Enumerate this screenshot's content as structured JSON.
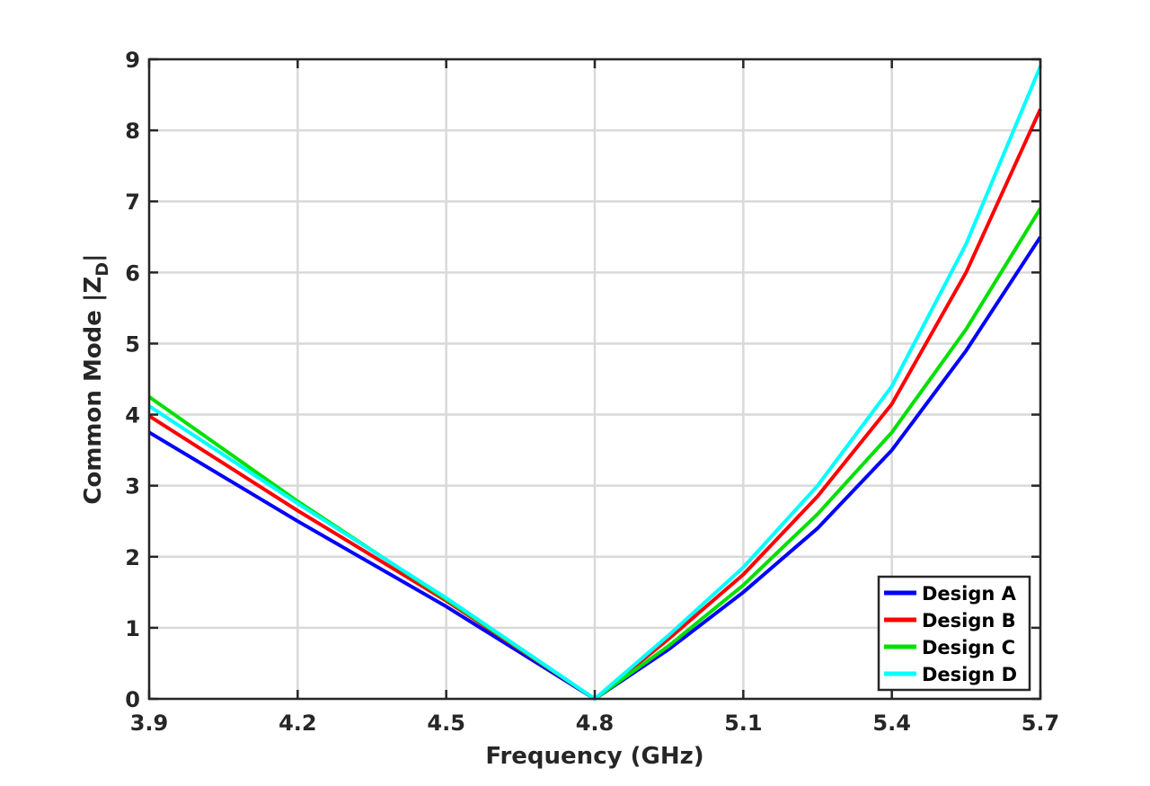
{
  "chart_data": {
    "type": "line",
    "xlabel": "Frequency (GHz)",
    "ylabel": "Common Mode |Z",
    "ylabel_subscript": "D",
    "ylabel_suffix": "|",
    "xlim": [
      3.9,
      5.7
    ],
    "ylim": [
      0,
      9
    ],
    "xticks": [
      "3.9",
      "4.2",
      "4.5",
      "4.8",
      "5.1",
      "5.4",
      "5.7"
    ],
    "yticks": [
      "0",
      "1",
      "2",
      "3",
      "4",
      "5",
      "6",
      "7",
      "8",
      "9"
    ],
    "grid": true,
    "legend_position": "bottom-right",
    "series": [
      {
        "name": "Design A",
        "color": "#0000ff",
        "x": [
          3.9,
          4.2,
          4.5,
          4.8,
          4.95,
          5.1,
          5.25,
          5.4,
          5.55,
          5.7
        ],
        "y": [
          3.75,
          2.5,
          1.3,
          0.0,
          0.7,
          1.5,
          2.4,
          3.5,
          4.9,
          6.5
        ]
      },
      {
        "name": "Design B",
        "color": "#ff0000",
        "x": [
          3.9,
          4.2,
          4.5,
          4.8,
          4.95,
          5.1,
          5.25,
          5.4,
          5.55,
          5.7
        ],
        "y": [
          3.98,
          2.65,
          1.38,
          0.0,
          0.85,
          1.75,
          2.85,
          4.15,
          6.0,
          8.3
        ]
      },
      {
        "name": "Design C",
        "color": "#00e000",
        "x": [
          3.9,
          4.2,
          4.5,
          4.8,
          4.95,
          5.1,
          5.25,
          5.4,
          5.55,
          5.7
        ],
        "y": [
          4.25,
          2.78,
          1.4,
          0.0,
          0.75,
          1.6,
          2.6,
          3.75,
          5.2,
          6.9
        ]
      },
      {
        "name": "Design D",
        "color": "#00ffff",
        "x": [
          3.9,
          4.2,
          4.5,
          4.8,
          4.95,
          5.1,
          5.25,
          5.4,
          5.55,
          5.7
        ],
        "y": [
          4.12,
          2.75,
          1.42,
          0.0,
          0.9,
          1.85,
          3.0,
          4.4,
          6.4,
          8.9
        ]
      }
    ]
  }
}
